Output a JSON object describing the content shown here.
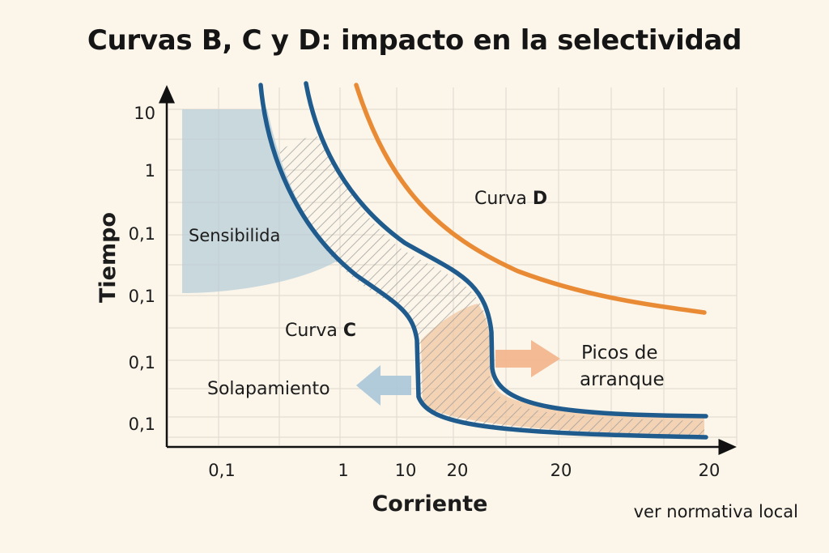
{
  "title": "Curvas B, C y D: impacto en la selectividad",
  "footnote": "ver normativa local",
  "colors": {
    "background": "#fbf5ea",
    "grid": "#e3ddd2",
    "axis": "#111111",
    "curve_c": "#1f5b8c",
    "curve_d": "#e98a35",
    "sensitivity_zone": "#b8cdd8",
    "startup_peaks_zone": "#f1c49e",
    "overlap_hatch": "#9a9a9a",
    "arrow_blue": "#a9c6d8",
    "arrow_orange": "#f2b48a"
  },
  "chart_data": {
    "type": "line",
    "title": "Curvas B, C y D: impacto en la selectividad",
    "xlabel": "Corriente",
    "ylabel": "Tiempo",
    "x_tick_labels": [
      "0,1",
      "1",
      "10",
      "20",
      "20",
      "20"
    ],
    "y_tick_labels": [
      "10",
      "1",
      "0,1",
      "0,1",
      "0,1",
      "0,1"
    ],
    "grid": true,
    "series": [
      {
        "name": "Curva C",
        "label_text": "Curva ",
        "label_bold": "C",
        "color": "#1f5b8c"
      },
      {
        "name": "Curva D",
        "label_text": "Curva ",
        "label_bold": "D",
        "color": "#e98a35"
      }
    ],
    "annotations": [
      {
        "id": "sensitivity",
        "text": "Sensibilida"
      },
      {
        "id": "overlap",
        "text": "Solapamiento",
        "arrow": "left"
      },
      {
        "id": "startup-peaks",
        "text": [
          "Picos de",
          "arranque"
        ],
        "arrow": "right"
      }
    ]
  }
}
